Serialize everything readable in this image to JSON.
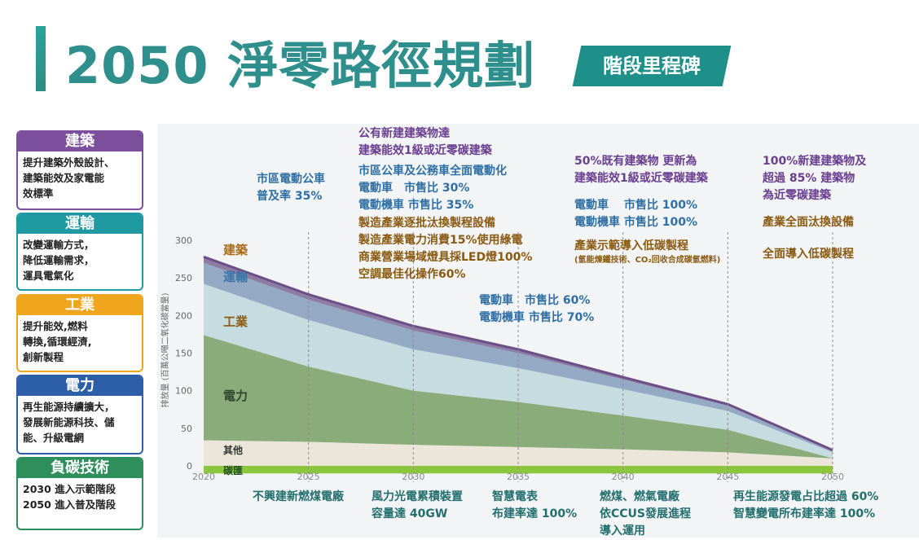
{
  "header": {
    "title": "2050 淨零路徑規劃",
    "badge": "階段里程碑"
  },
  "colors": {
    "teal": "#2f8f8c",
    "purple": "#6a3f8f",
    "blue": "#3a73a8",
    "orange": "#a86b18",
    "dark_teal": "#236f6e"
  },
  "sectors": [
    {
      "name": "建築",
      "text": "提升建築外殼設計、\n建築能效及家電能\n效標準",
      "color": "#7b4f9b"
    },
    {
      "name": "運輸",
      "text": "改變運輸方式，\n降低運輸需求，\n運具電氣化",
      "color": "#1f9aa3"
    },
    {
      "name": "工業",
      "text": "提升能效,燃料\n轉換,循環經濟,\n創新製程",
      "color": "#f0a51e"
    },
    {
      "name": "電力",
      "text": "再生能源持續擴大，\n發展新能源科技、儲\n能、升級電網",
      "color": "#2d5ea8"
    },
    {
      "name": "負碳技術",
      "text": "2030 進入示範階段\n2050 進入普及階段",
      "color": "#2e8f5c"
    }
  ],
  "annotations_top": [
    {
      "text": "市區電動公車\n普及率 35%",
      "color": "#2f6fa3"
    },
    {
      "text": "公有新建建築物達\n建築能效1級或近零碳建築",
      "color": "#6a3f8f"
    },
    {
      "text": "市區公車及公務車全面電動化\n電動車　市售比 30%\n電動機車 市售比 35%",
      "color": "#2f6fa3"
    },
    {
      "text": "製造產業逐批汰換製程設備\n製造產業電力消費15%使用綠電\n商業營業場域燈具採LED燈100%\n空調最佳化操作60%",
      "color": "#8a5a10"
    },
    {
      "text": "電動車　市售比 60%\n電動機車 市售比 70%",
      "color": "#2f6fa3"
    },
    {
      "text": "50%既有建築物 更新為\n建築能效1級或近零碳建築",
      "color": "#6a3f8f"
    },
    {
      "text": "電動車　 市售比 100%\n電動機車 市售比 100%",
      "color": "#2f6fa3"
    },
    {
      "text": "產業示範導入低碳製程",
      "color": "#8a5a10"
    },
    {
      "text": "(氫能煉鐵技術、CO₂回收合成碳氫燃料)",
      "color": "#8a5a10"
    },
    {
      "text": "100%新建建築物及\n超過 85% 建築物\n為近零碳建築",
      "color": "#6a3f8f"
    },
    {
      "text": "產業全面汰換設備",
      "color": "#8a5a10"
    },
    {
      "text": "全面導入低碳製程",
      "color": "#8a5a10"
    }
  ],
  "annotations_bottom": [
    {
      "text": "不興建新燃煤電廠",
      "color": "#236f6e"
    },
    {
      "text": "風力光電累積裝置\n容量達 40GW",
      "color": "#236f6e"
    },
    {
      "text": "智慧電表\n布建率達 100%",
      "color": "#236f6e"
    },
    {
      "text": "燃煤、燃氣電廠\n依CCUS發展進程\n導入運用",
      "color": "#236f6e"
    },
    {
      "text": "再生能源發電占比超過 60%\n智慧變電所布建率達 100%",
      "color": "#236f6e"
    }
  ],
  "chart_data": {
    "type": "area",
    "stacked": true,
    "x": [
      2020,
      2025,
      2030,
      2035,
      2040,
      2045,
      2050
    ],
    "ylabel": "排放量 (百萬公噸二氧化碳當量)",
    "xlim": [
      2020,
      2050
    ],
    "ylim": [
      0,
      300
    ],
    "yticks": [
      0,
      50,
      100,
      150,
      200,
      250,
      300
    ],
    "milestone_years": [
      2025,
      2030,
      2035,
      2040,
      2045,
      2050
    ],
    "series": [
      {
        "name": "碳匯",
        "color": "#8cc63f",
        "values": [
          -10,
          -10,
          -10,
          -10,
          -10,
          -10,
          -10
        ]
      },
      {
        "name": "其他",
        "color": "#ece6da",
        "values": [
          34,
          32,
          28,
          25,
          22,
          18,
          10
        ]
      },
      {
        "name": "電力",
        "color": "#8aab7a",
        "values": [
          140,
          100,
          72,
          60,
          45,
          30,
          0
        ]
      },
      {
        "name": "工業",
        "color": "#c5dde0",
        "values": [
          68,
          62,
          55,
          45,
          35,
          25,
          8
        ]
      },
      {
        "name": "運輸",
        "color": "#93a9c4",
        "values": [
          28,
          27,
          25,
          20,
          13,
          7,
          2
        ]
      },
      {
        "name": "建築",
        "color": "#8d7ca4",
        "values": [
          8,
          7,
          6,
          5,
          3,
          2,
          1
        ]
      }
    ]
  }
}
